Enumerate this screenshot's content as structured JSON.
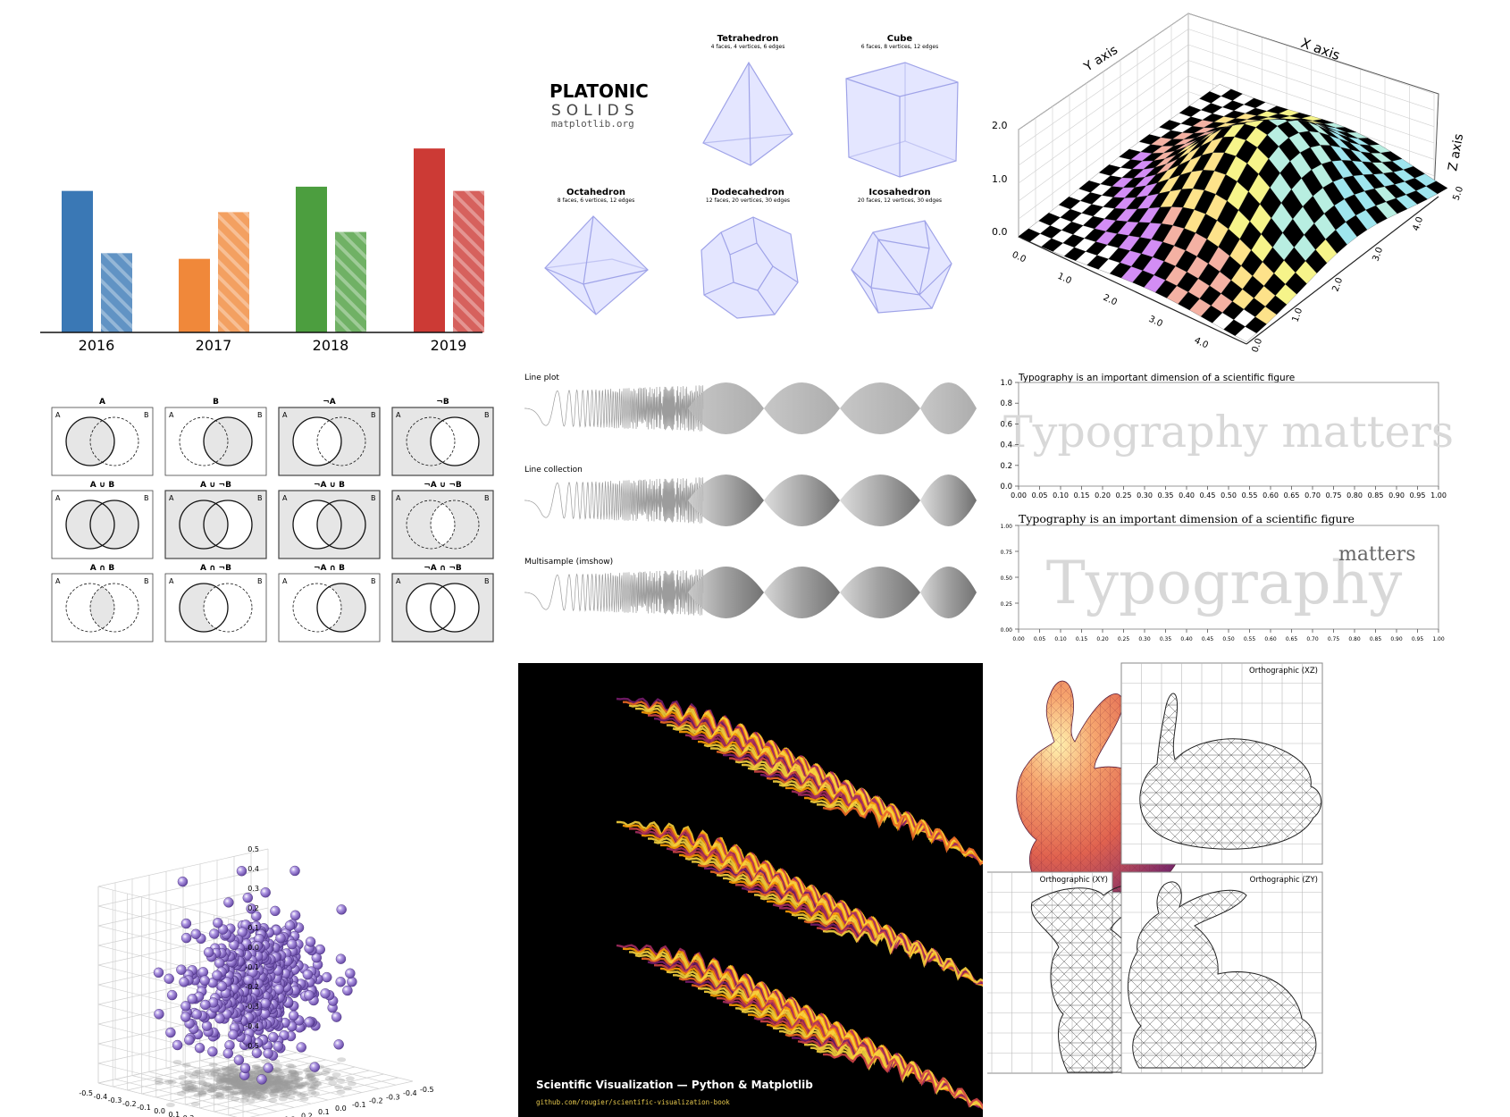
{
  "colors": {
    "bar_blue": "#3a78b5",
    "bar_orange": "#f0883a",
    "bar_green": "#4c9e3f",
    "bar_red": "#cc3a35",
    "solid_fill": "#e4e6ff",
    "solid_stroke": "#9fa3e8",
    "venn_bg": "#e6e6e6",
    "sphere": "#9b7ed6",
    "heat_bg": "#000000"
  },
  "chart_data": [
    {
      "type": "bar",
      "categories": [
        "2016",
        "2017",
        "2018",
        "2019"
      ],
      "series": [
        {
          "values": [
            1.0,
            0.52,
            1.03,
            1.3
          ]
        },
        {
          "values": [
            0.56,
            0.85,
            0.71,
            1.0
          ]
        }
      ],
      "ylim": [
        0,
        1.45
      ],
      "hatched_second_series": true
    },
    {
      "type": "other",
      "title": "PLATONIC",
      "subtitle": "SOLIDS",
      "source": "matplotlib.org",
      "solids": [
        {
          "name": "Tetrahedron",
          "desc": "4 faces, 4 vertices, 6 edges"
        },
        {
          "name": "Cube",
          "desc": "6 faces, 8 vertices, 12 edges"
        },
        {
          "name": "Octahedron",
          "desc": "8 faces, 6 vertices, 12 edges"
        },
        {
          "name": "Dodecahedron",
          "desc": "12 faces, 20 vertices, 30 edges"
        },
        {
          "name": "Icosahedron",
          "desc": "20 faces, 12 vertices, 30 edges"
        }
      ]
    },
    {
      "type": "surface",
      "xlabel": "X axis",
      "ylabel": "Y axis",
      "zlabel": "Z axis",
      "x_ticks": [
        "0.0",
        "1.0",
        "2.0",
        "3.0",
        "4.0",
        "5.0"
      ],
      "y_ticks": [
        "0.0",
        "1.0",
        "2.0",
        "3.0",
        "4.0",
        "5.0"
      ],
      "z_ticks": [
        "0.0",
        "1.0",
        "2.0"
      ]
    },
    {
      "type": "venn",
      "panels": [
        {
          "title": "A",
          "left": "A",
          "right": "B",
          "fill": "A"
        },
        {
          "title": "B",
          "left": "A",
          "right": "B",
          "fill": "B"
        },
        {
          "title": "¬A",
          "left": "A",
          "right": "B",
          "fill": "notA"
        },
        {
          "title": "¬B",
          "left": "A",
          "right": "B",
          "fill": "notB"
        },
        {
          "title": "A ∪ B",
          "left": "A",
          "right": "B",
          "fill": "AorB"
        },
        {
          "title": "A ∪ ¬B",
          "left": "A",
          "right": "B",
          "fill": "AornotB"
        },
        {
          "title": "¬A ∪ B",
          "left": "A",
          "right": "B",
          "fill": "notAorB"
        },
        {
          "title": "¬A ∪ ¬B",
          "left": "A",
          "right": "B",
          "fill": "notAornotB"
        },
        {
          "title": "A ∩ B",
          "left": "A",
          "right": "B",
          "fill": "AandB"
        },
        {
          "title": "A ∩ ¬B",
          "left": "A",
          "right": "B",
          "fill": "AandnotB"
        },
        {
          "title": "¬A ∩ B",
          "left": "A",
          "right": "B",
          "fill": "notAandB"
        },
        {
          "title": "¬A ∩ ¬B",
          "left": "A",
          "right": "B",
          "fill": "notAandnotB"
        }
      ]
    },
    {
      "type": "line",
      "rows": [
        {
          "label": "Line plot"
        },
        {
          "label": "Line collection"
        },
        {
          "label": "Multisample (imshow)"
        }
      ]
    },
    {
      "type": "text",
      "panels": [
        {
          "title": "Typography is an important dimension of a scientific figure",
          "words": [
            "Typography matters"
          ],
          "y_ticks": [
            "0.0",
            "0.2",
            "0.4",
            "0.6",
            "0.8",
            "1.0"
          ],
          "x_ticks": [
            "0.00",
            "0.05",
            "0.10",
            "0.15",
            "0.20",
            "0.25",
            "0.30",
            "0.35",
            "0.40",
            "0.45",
            "0.50",
            "0.55",
            "0.60",
            "0.65",
            "0.70",
            "0.75",
            "0.80",
            "0.85",
            "0.90",
            "0.95",
            "1.00"
          ]
        },
        {
          "title": "Typography is an important dimension of a scientific figure",
          "words": [
            "Typography",
            "matters"
          ],
          "y_ticks": [
            "0.00",
            "0.25",
            "0.50",
            "0.75",
            "1.00"
          ],
          "x_ticks": [
            "0.00",
            "0.05",
            "0.10",
            "0.15",
            "0.20",
            "0.25",
            "0.30",
            "0.35",
            "0.40",
            "0.45",
            "0.50",
            "0.55",
            "0.60",
            "0.65",
            "0.70",
            "0.75",
            "0.80",
            "0.85",
            "0.90",
            "0.95",
            "1.00"
          ]
        }
      ]
    },
    {
      "type": "scatter",
      "ticks": [
        "-0.5",
        "-0.4",
        "-0.3",
        "-0.2",
        "-0.1",
        "0.0",
        "0.1",
        "0.2",
        "0.3",
        "0.4",
        "0.5"
      ],
      "xlim": [
        -0.5,
        0.5
      ],
      "ylim": [
        -0.5,
        0.5
      ],
      "zlim": [
        -0.5,
        0.5
      ]
    },
    {
      "type": "heatmap",
      "colormap": "magma",
      "ridge_count": 3,
      "footer_title": "Scientific Visualization — Python & Matplotlib",
      "footer_url": "github.com/rougier/scientific-visualization-book"
    },
    {
      "type": "other",
      "panels": [
        {
          "label": "Orthographic (XZ)"
        },
        {
          "label": "Orthographic (XY)"
        },
        {
          "label": "Orthographic (ZY)"
        }
      ]
    }
  ]
}
